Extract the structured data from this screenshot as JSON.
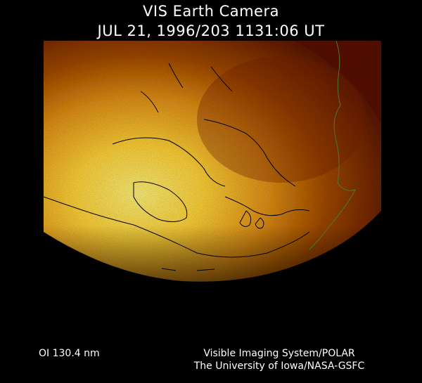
{
  "header": {
    "title": "VIS Earth Camera",
    "timestamp": "JUL 21, 1996/203 1131:06 UT"
  },
  "footer": {
    "filter": "OI  130.4 nm",
    "credit_line1": "Visible Imaging System/POLAR",
    "credit_line2": "The University of Iowa/NASA-GSFC"
  },
  "colors": {
    "background": "#000000",
    "glow_bright": "#ffe060",
    "glow_mid": "#d88a10",
    "glow_dim": "#6a1e00",
    "coastline": "#000000",
    "coastline_land_edge": "#3a6a2a"
  }
}
